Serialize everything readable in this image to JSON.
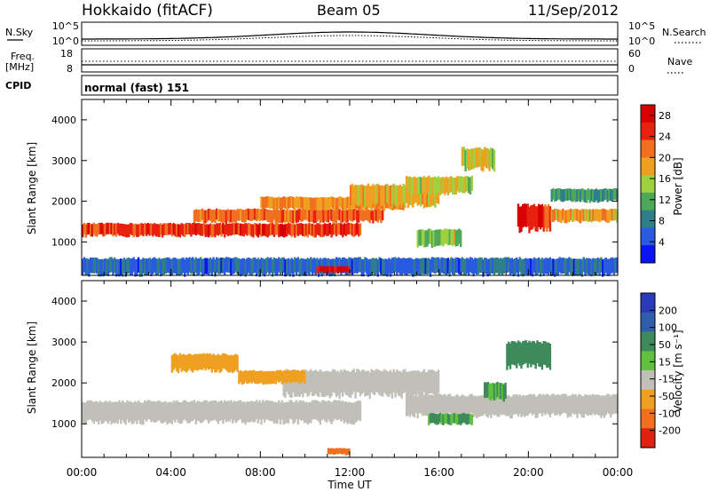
{
  "header": {
    "station": "Hokkaido (fitACF)",
    "beam": "Beam 05",
    "date": "11/Sep/2012"
  },
  "top_panels": {
    "nsky_label": "N.Sky",
    "nsky_ticks": [
      "10^5",
      "10^0"
    ],
    "nsearch_label": "N.Search",
    "nsearch_ticks": [
      "10^5",
      "10^0"
    ],
    "freq_label_1": "Freq.",
    "freq_label_2": "[MHz]",
    "freq_ticks": [
      "18",
      "8"
    ],
    "nave_label": "Nave",
    "nave_ticks": [
      "60",
      "0"
    ],
    "cpid_label": "CPID",
    "cpid_value": "normal (fast) 151"
  },
  "chart_data": [
    {
      "type": "heatmap",
      "title": "",
      "ylabel": "Slant Range [km]",
      "xlabel": "",
      "xlim": [
        0,
        24
      ],
      "ylim": [
        180,
        4500
      ],
      "yticks": [
        "1000",
        "2000",
        "3000",
        "4000"
      ],
      "colorbar": {
        "label": "Power [dB]",
        "ticks": [
          "4",
          "8",
          "12",
          "16",
          "20",
          "24",
          "28"
        ],
        "range": [
          0,
          30
        ],
        "colors": [
          "#0a14f0",
          "#2a5ae0",
          "#2f7f8a",
          "#4fa85a",
          "#9fd040",
          "#f0a020",
          "#f07020",
          "#e82010",
          "#d80000"
        ]
      },
      "bands": [
        {
          "t0": 0.0,
          "t1": 12.5,
          "r0": 1150,
          "r1": 1450,
          "power": 25
        },
        {
          "t0": 5.0,
          "t1": 13.5,
          "r0": 1500,
          "r1": 1800,
          "power": 22
        },
        {
          "t0": 8.0,
          "t1": 14.5,
          "r0": 1800,
          "r1": 2100,
          "power": 20
        },
        {
          "t0": 12.0,
          "t1": 16.0,
          "r0": 1900,
          "r1": 2400,
          "power": 18
        },
        {
          "t0": 14.5,
          "t1": 17.5,
          "r0": 2200,
          "r1": 2600,
          "power": 16
        },
        {
          "t0": 15.0,
          "t1": 17.0,
          "r0": 900,
          "r1": 1300,
          "power": 14
        },
        {
          "t0": 17.0,
          "t1": 18.5,
          "r0": 2800,
          "r1": 3300,
          "power": 15
        },
        {
          "t0": 19.5,
          "t1": 21.0,
          "r0": 1300,
          "r1": 1900,
          "power": 26
        },
        {
          "t0": 21.0,
          "t1": 24.0,
          "r0": 1500,
          "r1": 1800,
          "power": 18
        },
        {
          "t0": 21.0,
          "t1": 24.0,
          "r0": 2000,
          "r1": 2300,
          "power": 10
        },
        {
          "t0": 0.0,
          "t1": 24.0,
          "r0": 200,
          "r1": 600,
          "power": 6
        },
        {
          "t0": 10.5,
          "t1": 12.0,
          "r0": 250,
          "r1": 400,
          "power": 28
        }
      ]
    },
    {
      "type": "heatmap",
      "title": "",
      "ylabel": "Slant Range [km]",
      "xlabel": "Time UT",
      "xlim": [
        0,
        24
      ],
      "ylim": [
        180,
        4500
      ],
      "xticks": [
        "00:00",
        "04:00",
        "08:00",
        "12:00",
        "16:00",
        "20:00",
        "00:00"
      ],
      "yticks": [
        "1000",
        "2000",
        "3000",
        "4000"
      ],
      "colorbar": {
        "label": "Velocity [m s⁻¹]",
        "ticks": [
          "200",
          "100",
          "50",
          "15",
          "-15",
          "-50",
          "-100",
          "-200"
        ],
        "colors": [
          "#2a3ab8",
          "#2f5fa8",
          "#3e8a5a",
          "#60c040",
          "#c0c0b8",
          "#f0a020",
          "#f07020",
          "#e02010"
        ]
      },
      "bands": [
        {
          "t0": 0.0,
          "t1": 12.5,
          "r0": 1050,
          "r1": 1550,
          "velocity": 0
        },
        {
          "t0": 9.0,
          "t1": 16.0,
          "r0": 1700,
          "r1": 2300,
          "velocity": 0
        },
        {
          "t0": 14.5,
          "t1": 24.0,
          "r0": 1200,
          "r1": 1700,
          "velocity": 0
        },
        {
          "t0": 4.0,
          "t1": 7.0,
          "r0": 2300,
          "r1": 2700,
          "velocity": -40
        },
        {
          "t0": 7.0,
          "t1": 10.0,
          "r0": 2000,
          "r1": 2300,
          "velocity": -30
        },
        {
          "t0": 15.5,
          "t1": 17.5,
          "r0": 1000,
          "r1": 1250,
          "velocity": 30
        },
        {
          "t0": 18.0,
          "t1": 19.0,
          "r0": 1600,
          "r1": 2000,
          "velocity": 30
        },
        {
          "t0": 19.0,
          "t1": 21.0,
          "r0": 2400,
          "r1": 3000,
          "velocity": 40
        },
        {
          "t0": 11.0,
          "t1": 12.0,
          "r0": 250,
          "r1": 400,
          "velocity": -60
        }
      ]
    }
  ]
}
